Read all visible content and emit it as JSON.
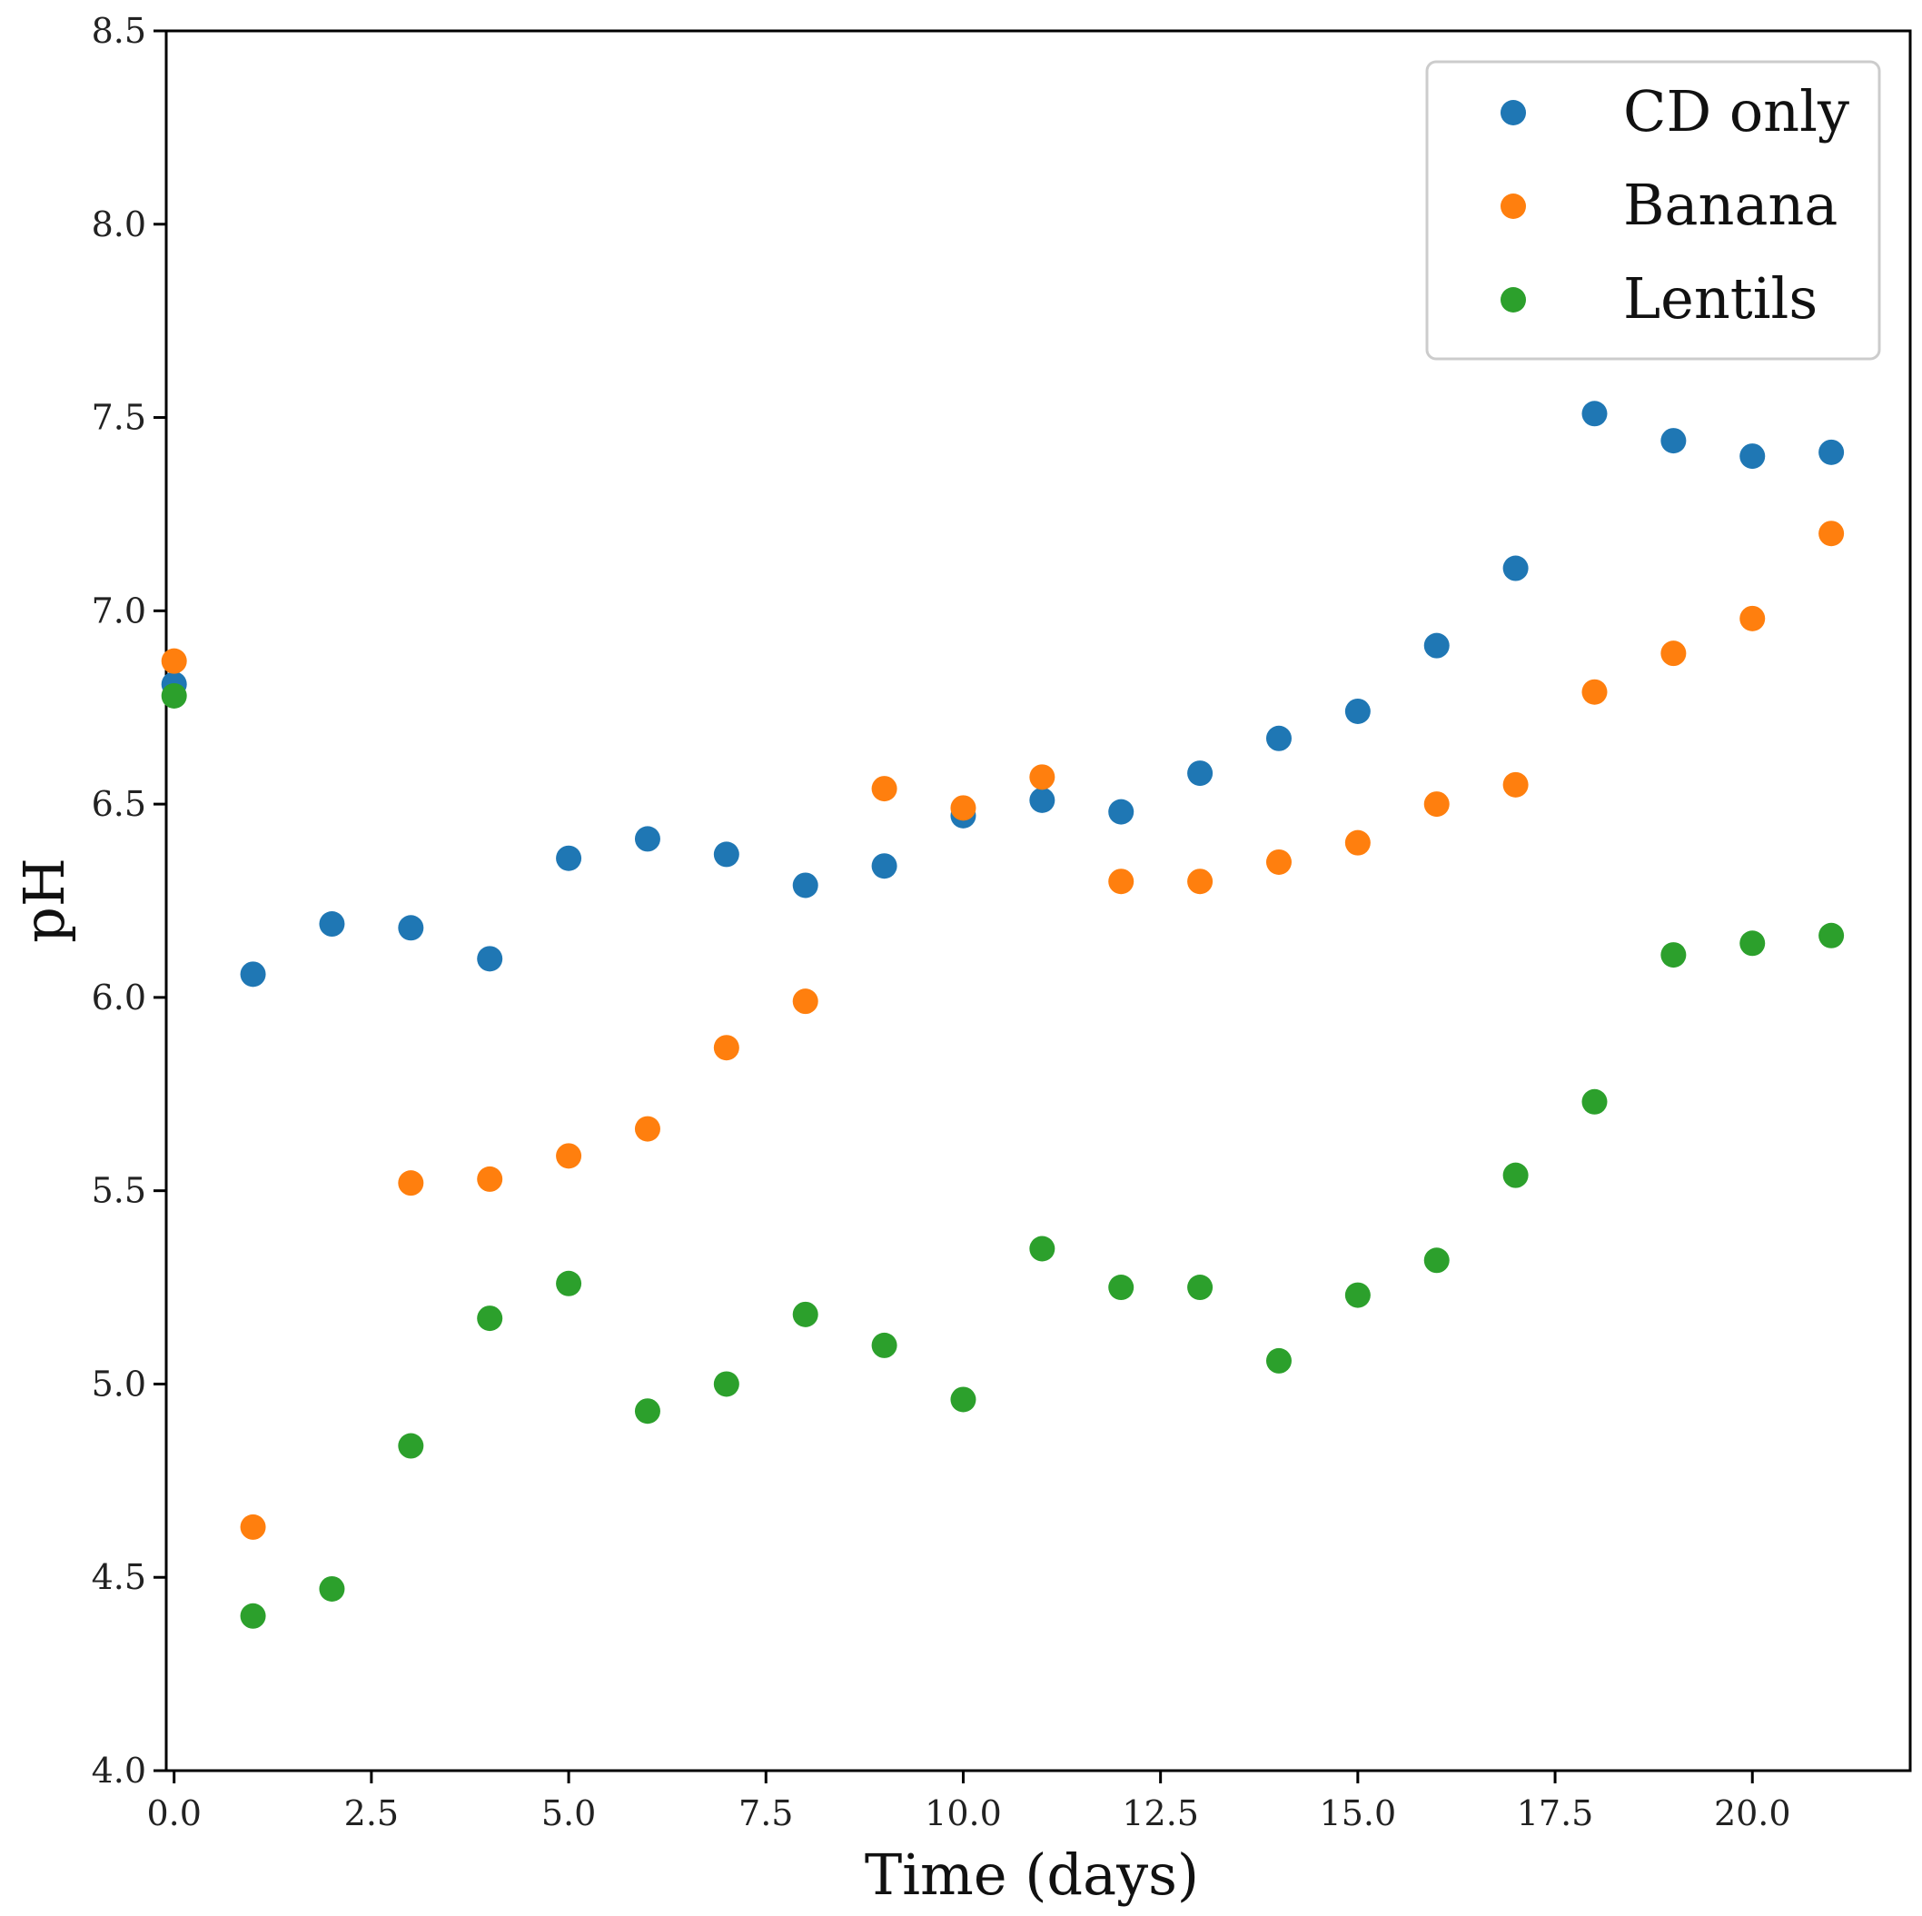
{
  "chart_data": {
    "type": "scatter",
    "title": "",
    "xlabel": "Time (days)",
    "ylabel": "pH",
    "xlim": [
      -0.1,
      22.0
    ],
    "ylim": [
      4.0,
      8.5
    ],
    "xticks": [
      0.0,
      2.5,
      5.0,
      7.5,
      10.0,
      12.5,
      15.0,
      17.5,
      20.0
    ],
    "xtick_labels": [
      "0.0",
      "2.5",
      "5.0",
      "7.5",
      "10.0",
      "12.5",
      "15.0",
      "17.5",
      "20.0"
    ],
    "yticks": [
      4.0,
      4.5,
      5.0,
      5.5,
      6.0,
      6.5,
      7.0,
      7.5,
      8.0,
      8.5
    ],
    "ytick_labels": [
      "4.0",
      "4.5",
      "5.0",
      "5.5",
      "6.0",
      "6.5",
      "7.0",
      "7.5",
      "8.0",
      "8.5"
    ],
    "grid": false,
    "legend_position": "top-right",
    "series": [
      {
        "name": "CD only",
        "color": "#1f77b4",
        "x": [
          0,
          1,
          2,
          3,
          4,
          5,
          6,
          7,
          8,
          9,
          10,
          11,
          12,
          13,
          14,
          15,
          16,
          17,
          18,
          19,
          20,
          21
        ],
        "y": [
          6.81,
          6.06,
          6.19,
          6.18,
          6.1,
          6.36,
          6.41,
          6.37,
          6.29,
          6.34,
          6.47,
          6.51,
          6.48,
          6.58,
          6.67,
          6.74,
          6.91,
          7.11,
          7.51,
          7.44,
          7.4,
          7.41
        ]
      },
      {
        "name": "Banana",
        "color": "#ff7f0e",
        "x": [
          0,
          1,
          3,
          4,
          5,
          6,
          7,
          8,
          9,
          10,
          11,
          12,
          13,
          14,
          15,
          16,
          17,
          18,
          19,
          20,
          21
        ],
        "y": [
          6.87,
          4.63,
          5.52,
          5.53,
          5.59,
          5.66,
          5.87,
          5.99,
          6.54,
          6.49,
          6.57,
          6.3,
          6.3,
          6.35,
          6.4,
          6.5,
          6.55,
          6.79,
          6.89,
          6.98,
          7.2
        ]
      },
      {
        "name": "Lentils",
        "color": "#2ca02c",
        "x": [
          0,
          1,
          2,
          3,
          4,
          5,
          6,
          7,
          8,
          9,
          10,
          11,
          12,
          13,
          14,
          15,
          16,
          17,
          18,
          19,
          20,
          21
        ],
        "y": [
          6.78,
          4.4,
          4.47,
          4.84,
          5.17,
          5.26,
          4.93,
          5.0,
          5.18,
          5.1,
          4.96,
          5.35,
          5.25,
          5.25,
          5.06,
          5.23,
          5.32,
          5.54,
          5.73,
          6.11,
          6.14,
          6.16
        ]
      }
    ]
  }
}
